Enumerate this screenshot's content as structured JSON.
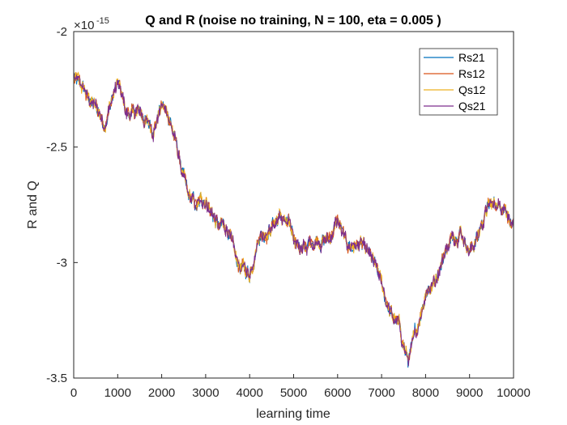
{
  "chart_data": {
    "type": "line",
    "title": "Q and R (noise no training, N = 100, eta = 0.005 )",
    "xlabel": "learning time",
    "ylabel": "R and Q",
    "exponent_base": "×10",
    "exponent_power": "-15",
    "xlim": [
      0,
      10000
    ],
    "ylim": [
      -3.5,
      -2.0
    ],
    "x_ticks": [
      0,
      1000,
      2000,
      3000,
      4000,
      5000,
      6000,
      7000,
      8000,
      9000,
      10000
    ],
    "x_tick_labels": [
      "0",
      "1000",
      "2000",
      "3000",
      "4000",
      "5000",
      "6000",
      "7000",
      "8000",
      "9000",
      "10000"
    ],
    "y_ticks": [
      -3.5,
      -3.0,
      -2.5,
      -2.0
    ],
    "y_tick_labels": [
      "-3.5",
      "-3",
      "-2.5",
      "-2"
    ],
    "grid": false,
    "legend_position": "top-right",
    "trend": {
      "x": [
        0,
        300,
        500,
        700,
        850,
        1000,
        1200,
        1500,
        1800,
        2000,
        2200,
        2400,
        2600,
        2800,
        3000,
        3300,
        3500,
        3700,
        4000,
        4200,
        4400,
        4700,
        5000,
        5200,
        5500,
        5800,
        6000,
        6200,
        6500,
        6800,
        7000,
        7200,
        7400,
        7600,
        7800,
        8000,
        8200,
        8500,
        8800,
        9000,
        9200,
        9400,
        9600,
        9800,
        10000
      ],
      "y": [
        -2.2,
        -2.28,
        -2.33,
        -2.4,
        -2.3,
        -2.22,
        -2.36,
        -2.35,
        -2.42,
        -2.32,
        -2.38,
        -2.55,
        -2.72,
        -2.76,
        -2.72,
        -2.85,
        -2.85,
        -3.0,
        -3.05,
        -2.88,
        -2.86,
        -2.8,
        -2.88,
        -2.95,
        -2.9,
        -2.9,
        -2.82,
        -2.93,
        -2.92,
        -3.0,
        -3.1,
        -3.22,
        -3.28,
        -3.43,
        -3.3,
        -3.12,
        -3.08,
        -2.92,
        -2.85,
        -2.95,
        -2.88,
        -2.76,
        -2.75,
        -2.74,
        -2.85
      ]
    },
    "series": [
      {
        "name": "Rs21",
        "color": "#0072BD"
      },
      {
        "name": "Rs12",
        "color": "#D95319"
      },
      {
        "name": "Qs12",
        "color": "#EDB120"
      },
      {
        "name": "Qs21",
        "color": "#7E2F8E"
      }
    ]
  }
}
